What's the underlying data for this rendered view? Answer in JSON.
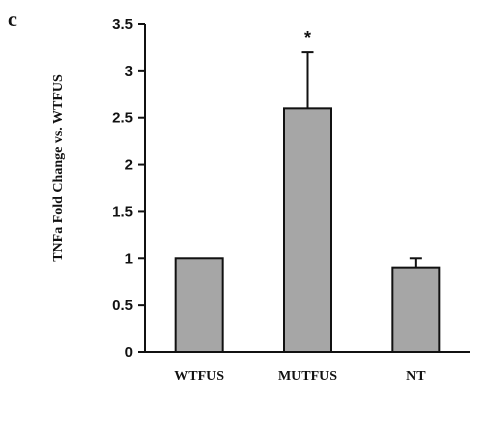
{
  "panel_label": "c",
  "chart_data": {
    "type": "bar",
    "title": "",
    "xlabel": "",
    "ylabel": "TNFa Fold Change vs. WTFUS",
    "categories": [
      "WTFUS",
      "MUTFUS",
      "NT"
    ],
    "values": [
      1.0,
      2.6,
      0.9
    ],
    "error_upper": [
      0,
      0.6,
      0.1
    ],
    "annotations": [
      {
        "category": "MUTFUS",
        "text": "*"
      }
    ],
    "ylim": [
      0,
      3.5
    ],
    "yticks": [
      "0",
      "0.5",
      "1",
      "1.5",
      "2",
      "2.5",
      "3",
      "3.5"
    ],
    "bar_color": "#a6a6a6",
    "grid": false
  }
}
